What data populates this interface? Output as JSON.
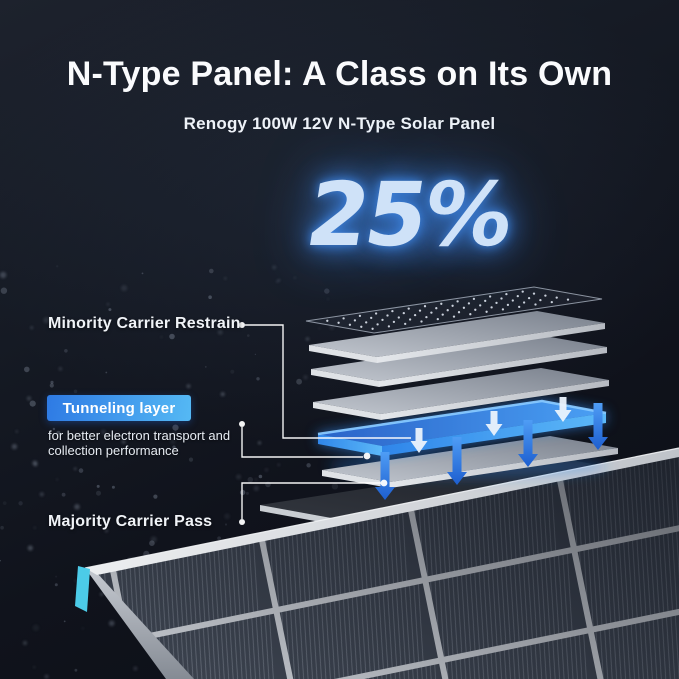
{
  "header": {
    "title": "N-Type Panel: A Class on Its Own",
    "subtitle": "Renogy 100W 12V N-Type Solar Panel"
  },
  "stat": {
    "value": "25%"
  },
  "callouts": {
    "minority": "Minority Carrier Restrain",
    "tunneling": {
      "title": "Tunneling layer",
      "desc_line1": "for better electron transport and",
      "desc_line2": "collection performance"
    },
    "majority": "Majority Carrier Pass"
  },
  "colors": {
    "stat_text": "#cfe2f8",
    "stat_glow": "#3d83e0",
    "tunneling_start": "#2e7ae4",
    "tunneling_end": "#55b9f4",
    "blue_top_a": "#2a63c8",
    "blue_top_b": "#4aa0f4",
    "blue_front_a": "#2f86ea",
    "blue_front_b": "#5cb8f8",
    "blue_edge": "#86c8ff",
    "arrow_blue_a": "#4f9df5",
    "arrow_blue_b": "#1d5ecf",
    "cyan_accent": "#4ccbe8",
    "background": "#12161f"
  }
}
